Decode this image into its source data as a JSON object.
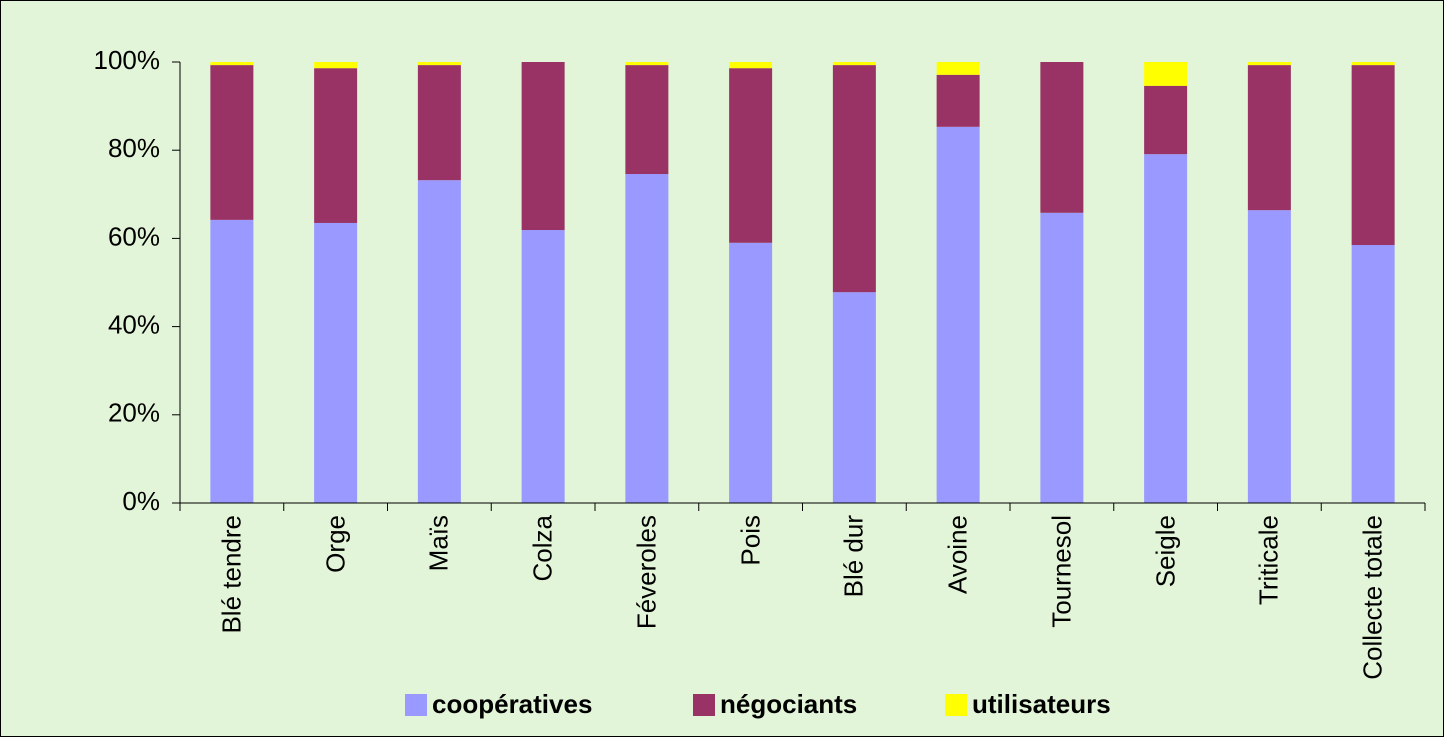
{
  "chart_data": {
    "type": "stacked_bar",
    "categories": [
      "Blé tendre",
      "Orge",
      "Maïs",
      "Colza",
      "Féveroles",
      "Pois",
      "Blé dur",
      "Avoine",
      "Tournesol",
      "Seigle",
      "Triticale",
      "Collecte totale"
    ],
    "series": [
      {
        "name": "coopératives",
        "color": "#9999ff",
        "values": [
          64.2,
          63.5,
          73.2,
          61.9,
          74.6,
          59.0,
          47.8,
          85.3,
          65.8,
          79.1,
          66.4,
          58.5
        ]
      },
      {
        "name": "négociants",
        "color": "#993366",
        "values": [
          35.1,
          35.1,
          26.1,
          38.1,
          24.7,
          39.6,
          51.5,
          11.8,
          34.2,
          15.5,
          32.9,
          40.8
        ]
      },
      {
        "name": "utilisateurs",
        "color": "#ffff00",
        "values": [
          0.7,
          1.4,
          0.7,
          0,
          0.7,
          1.4,
          0.7,
          2.9,
          0,
          5.4,
          0.7,
          0.7
        ]
      }
    ],
    "ylim": [
      0,
      100
    ],
    "yticks": [
      {
        "value": 0,
        "label": "0%"
      },
      {
        "value": 20,
        "label": "20%"
      },
      {
        "value": 40,
        "label": "40%"
      },
      {
        "value": 60,
        "label": "60%"
      },
      {
        "value": 80,
        "label": "80%"
      },
      {
        "value": 100,
        "label": "100%"
      }
    ],
    "legend": "bottom"
  }
}
